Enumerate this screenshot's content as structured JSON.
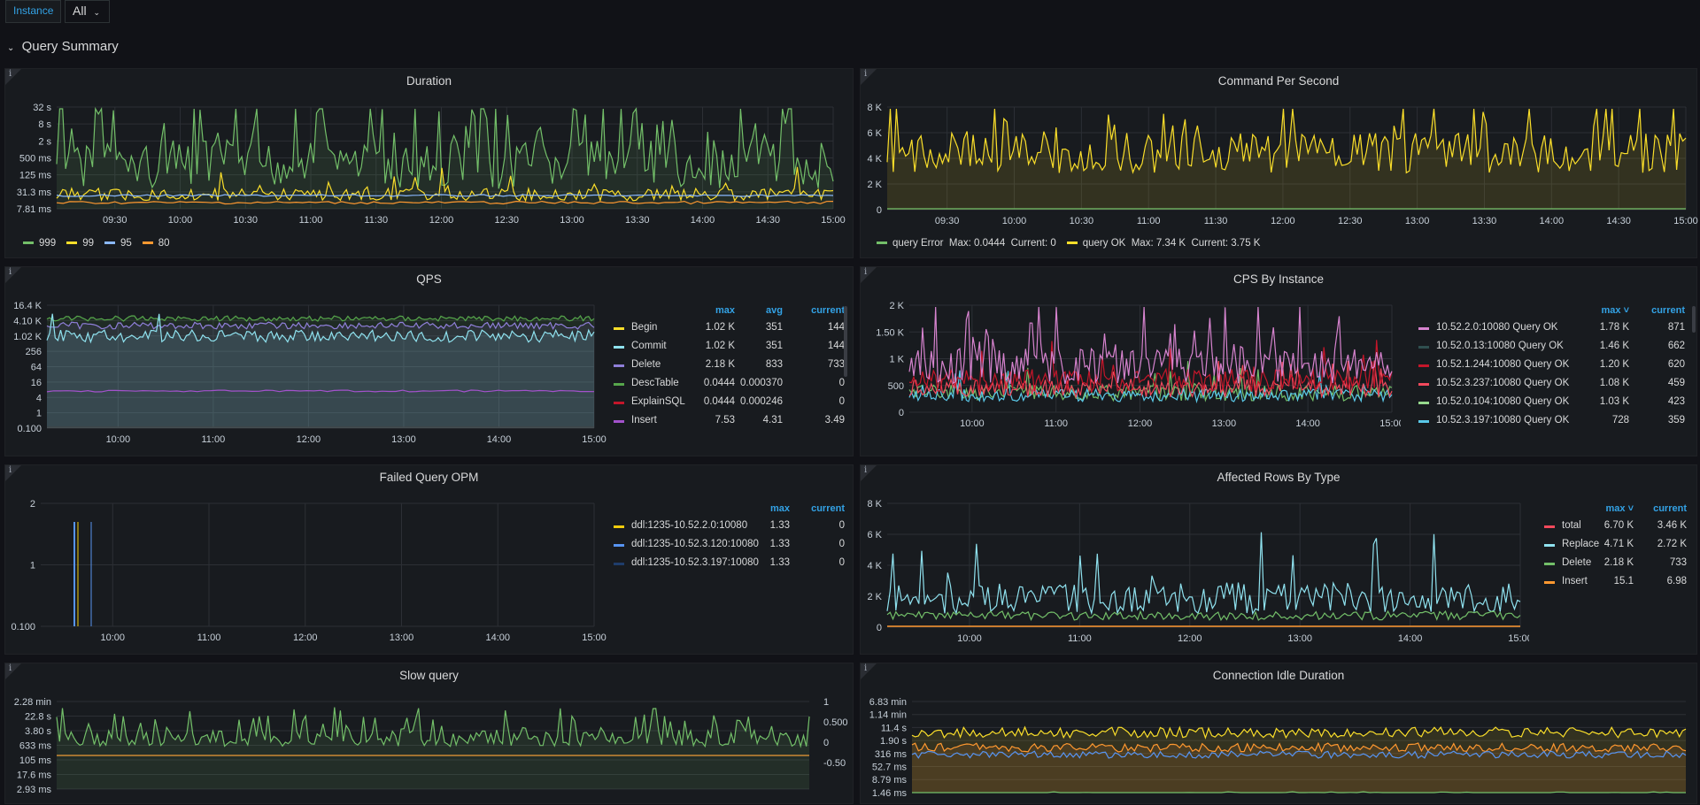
{
  "topbar": {
    "variable_label": "Instance",
    "variable_value": "All",
    "chevron_icon": "chevron-down-icon"
  },
  "row": {
    "title": "Query Summary",
    "chevron_icon": "chevron-down-icon"
  },
  "info_icon": "i",
  "panels": {
    "duration": {
      "title": "Duration",
      "y_ticks": [
        "32 s",
        "8 s",
        "2 s",
        "500 ms",
        "125 ms",
        "31.3 ms",
        "7.81 ms"
      ],
      "x_ticks": [
        "09:30",
        "10:00",
        "10:30",
        "11:00",
        "11:30",
        "12:00",
        "12:30",
        "13:00",
        "13:30",
        "14:00",
        "14:30",
        "15:00"
      ],
      "legend": [
        {
          "name": "999",
          "color": "#73bf69"
        },
        {
          "name": "99",
          "color": "#fade2a"
        },
        {
          "name": "95",
          "color": "#8ab8ff"
        },
        {
          "name": "80",
          "color": "#ff9830"
        }
      ]
    },
    "cps": {
      "title": "Command Per Second",
      "y_ticks": [
        "8 K",
        "6 K",
        "4 K",
        "2 K",
        "0"
      ],
      "x_ticks": [
        "09:30",
        "10:00",
        "10:30",
        "11:00",
        "11:30",
        "12:00",
        "12:30",
        "13:00",
        "13:30",
        "14:00",
        "14:30",
        "15:00"
      ],
      "legend": [
        {
          "name": "query Error",
          "max": "Max: 0.0444",
          "current": "Current: 0",
          "color": "#73bf69"
        },
        {
          "name": "query OK",
          "max": "Max: 7.34 K",
          "current": "Current: 3.75 K",
          "color": "#fade2a"
        }
      ]
    },
    "qps": {
      "title": "QPS",
      "y_ticks": [
        "16.4 K",
        "4.10 K",
        "1.02 K",
        "256",
        "64",
        "16",
        "4",
        "1",
        "0.100"
      ],
      "x_ticks": [
        "10:00",
        "11:00",
        "12:00",
        "13:00",
        "14:00",
        "15:00"
      ],
      "columns": [
        "max",
        "avg",
        "current"
      ],
      "rows": [
        {
          "name": "Begin",
          "max": "1.02 K",
          "avg": "351",
          "current": "144",
          "color": "#fade2a"
        },
        {
          "name": "Commit",
          "max": "1.02 K",
          "avg": "351",
          "current": "144",
          "color": "#8fe2ef"
        },
        {
          "name": "Delete",
          "max": "2.18 K",
          "avg": "833",
          "current": "733",
          "color": "#8f7fd9"
        },
        {
          "name": "DescTable",
          "max": "0.0444",
          "avg": "0.000370",
          "current": "0",
          "color": "#56a64b"
        },
        {
          "name": "ExplainSQL",
          "max": "0.0444",
          "avg": "0.000246",
          "current": "0",
          "color": "#c4162a"
        },
        {
          "name": "Insert",
          "max": "7.53",
          "avg": "4.31",
          "current": "3.49",
          "color": "#a352cc"
        }
      ]
    },
    "cps_instance": {
      "title": "CPS By Instance",
      "y_ticks": [
        "2 K",
        "1.50 K",
        "1 K",
        "500",
        "0"
      ],
      "x_ticks": [
        "10:00",
        "11:00",
        "12:00",
        "13:00",
        "14:00",
        "15:00"
      ],
      "columns": [
        "max",
        "current"
      ],
      "sort_icon": "chevron-down-icon",
      "rows": [
        {
          "name": "10.52.2.0:10080 Query OK",
          "max": "1.78 K",
          "current": "871",
          "color": "#d683ce"
        },
        {
          "name": "10.52.0.13:10080 Query OK",
          "max": "1.46 K",
          "current": "662",
          "color": "#2f4f4f"
        },
        {
          "name": "10.52.1.244:10080 Query OK",
          "max": "1.20 K",
          "current": "620",
          "color": "#c4162a"
        },
        {
          "name": "10.52.3.237:10080 Query OK",
          "max": "1.08 K",
          "current": "459",
          "color": "#f2495c"
        },
        {
          "name": "10.52.0.104:10080 Query OK",
          "max": "1.03 K",
          "current": "423",
          "color": "#96d98d"
        },
        {
          "name": "10.52.3.197:10080 Query OK",
          "max": "728",
          "current": "359",
          "color": "#5ac8e8"
        }
      ]
    },
    "failed": {
      "title": "Failed Query OPM",
      "y_ticks": [
        "2",
        "1",
        "0.100"
      ],
      "x_ticks": [
        "10:00",
        "11:00",
        "12:00",
        "13:00",
        "14:00",
        "15:00"
      ],
      "columns": [
        "max",
        "current"
      ],
      "rows": [
        {
          "name": "ddl:1235-10.52.2.0:10080",
          "max": "1.33",
          "current": "0",
          "color": "#f2cc0c"
        },
        {
          "name": "ddl:1235-10.52.3.120:10080",
          "max": "1.33",
          "current": "0",
          "color": "#5794f2"
        },
        {
          "name": "ddl:1235-10.52.3.197:10080",
          "max": "1.33",
          "current": "0",
          "color": "#1f3d6b"
        }
      ]
    },
    "affected": {
      "title": "Affected Rows By Type",
      "y_ticks": [
        "8 K",
        "6 K",
        "4 K",
        "2 K",
        "0"
      ],
      "x_ticks": [
        "10:00",
        "11:00",
        "12:00",
        "13:00",
        "14:00",
        "15:00"
      ],
      "columns": [
        "max",
        "current"
      ],
      "sort_icon": "chevron-down-icon",
      "rows": [
        {
          "name": "total",
          "max": "6.70 K",
          "current": "3.46 K",
          "color": "#f2495c"
        },
        {
          "name": "Replace",
          "max": "4.71 K",
          "current": "2.72 K",
          "color": "#8fe2ef"
        },
        {
          "name": "Delete",
          "max": "2.18 K",
          "current": "733",
          "color": "#73bf69"
        },
        {
          "name": "Insert",
          "max": "15.1",
          "current": "6.98",
          "color": "#ff9830"
        }
      ]
    },
    "slow": {
      "title": "Slow query",
      "y_ticks": [
        "2.28 min",
        "22.8 s",
        "3.80 s",
        "633 ms",
        "105 ms",
        "17.6 ms",
        "2.93 ms"
      ],
      "y2_ticks": [
        "1",
        "0.500",
        "0",
        "-0.50"
      ]
    },
    "idle": {
      "title": "Connection Idle Duration",
      "y_ticks": [
        "6.83 min",
        "1.14 min",
        "11.4 s",
        "1.90 s",
        "316 ms",
        "52.7 ms",
        "8.79 ms",
        "1.46 ms"
      ]
    }
  }
}
